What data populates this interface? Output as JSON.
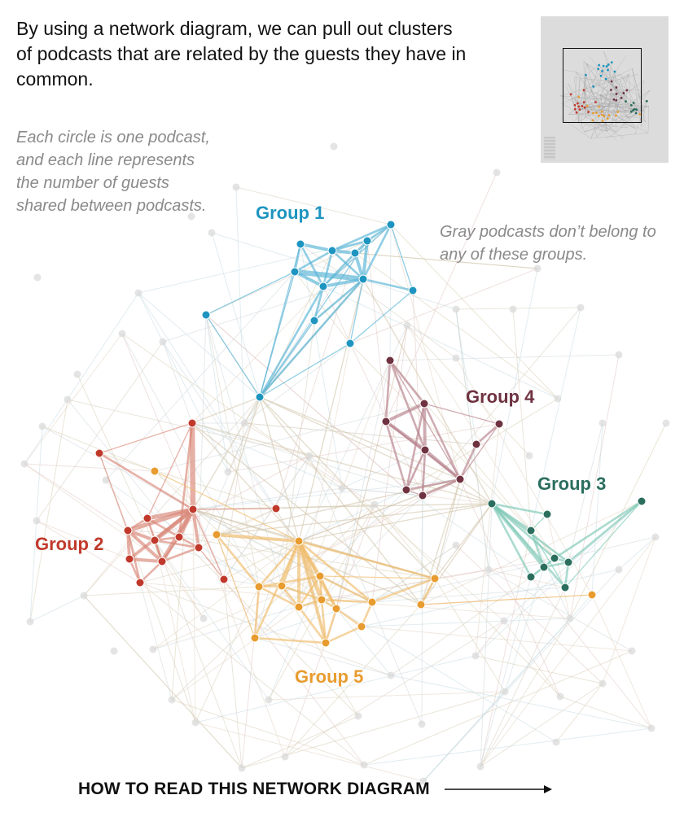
{
  "header": {
    "headline": "By using a network diagram, we can pull out clusters of podcasts that are related by the guests they have in common."
  },
  "notes": {
    "legend": "Each circle is one podcast, and each line represents the number of guests shared between podcasts.",
    "gray": "Gray podcasts don’t belong to any of these groups."
  },
  "groups": [
    {
      "id": "g1",
      "label": "Group 1",
      "color": "#1e95c0",
      "edge_color": "#56b3d6"
    },
    {
      "id": "g2",
      "label": "Group 2",
      "color": "#c0392b",
      "edge_color": "#d98577"
    },
    {
      "id": "g3",
      "label": "Group 3",
      "color": "#2b6e5e",
      "edge_color": "#7cc7b4"
    },
    {
      "id": "g4",
      "label": "Group 4",
      "color": "#6f3241",
      "edge_color": "#b57f8b"
    },
    {
      "id": "g5",
      "label": "Group 5",
      "color": "#e89c2f",
      "edge_color": "#f0bc6a"
    }
  ],
  "gray_color": "#d9d9d9",
  "footer": {
    "cta": "HOW TO READ THIS NETWORK DIAGRAM",
    "arrow_icon": "arrow-right-icon"
  }
}
